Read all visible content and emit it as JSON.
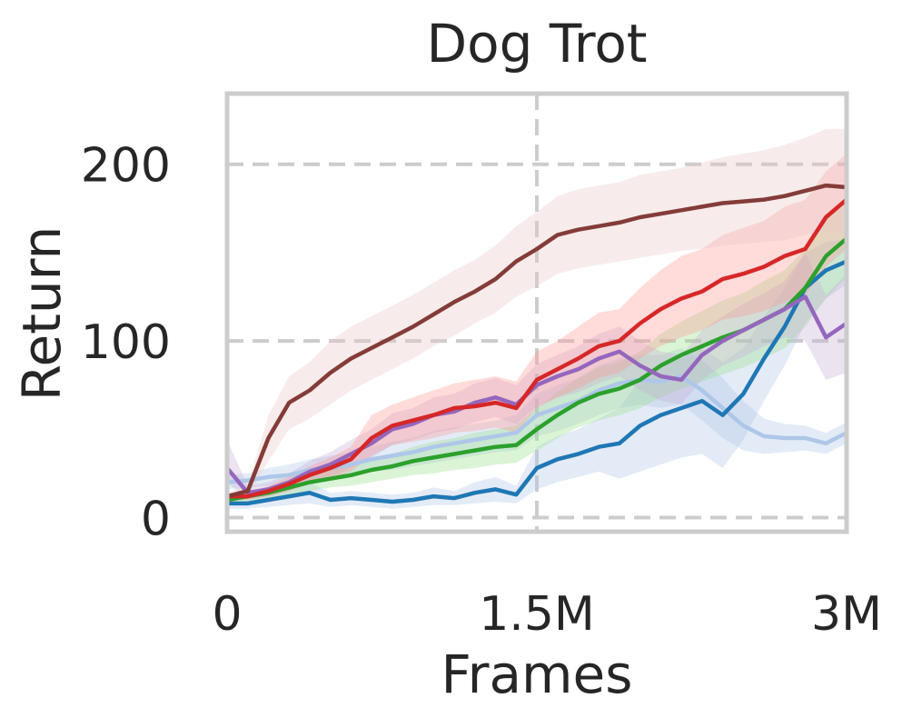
{
  "chart_data": {
    "type": "line",
    "title": "Dog Trot",
    "xlabel": "Frames",
    "ylabel": "Return",
    "xlim": [
      0,
      3000000
    ],
    "ylim": [
      -8,
      240
    ],
    "xticks": [
      0,
      1500000,
      3000000
    ],
    "xtick_labels": [
      "0",
      "1.5M",
      "3M"
    ],
    "yticks": [
      0,
      100,
      200
    ],
    "ytick_labels": [
      "0",
      "100",
      "200"
    ],
    "grid": true,
    "grid_style": "dashed",
    "legend": "none",
    "series": [
      {
        "color": "#aec7e8",
        "band_color": "#aec7e8",
        "x": [
          0,
          100000,
          200000,
          300000,
          400000,
          500000,
          600000,
          700000,
          800000,
          900000,
          1000000,
          1100000,
          1200000,
          1300000,
          1400000,
          1500000,
          1600000,
          1700000,
          1800000,
          1900000,
          2000000,
          2100000,
          2200000,
          2300000,
          2400000,
          2500000,
          2600000,
          2700000,
          2800000,
          2900000,
          3000000
        ],
        "y": [
          20,
          21,
          23,
          24,
          27,
          28,
          30,
          33,
          35,
          37,
          40,
          42,
          44,
          46,
          48,
          58,
          62,
          66,
          72,
          76,
          78,
          77,
          80,
          72,
          62,
          52,
          46,
          45,
          45,
          42,
          48
        ],
        "lower": [
          16,
          17,
          18,
          19,
          21,
          22,
          24,
          26,
          27,
          29,
          31,
          33,
          35,
          37,
          38,
          46,
          49,
          53,
          58,
          62,
          64,
          62,
          64,
          55,
          45,
          38,
          36,
          37,
          38,
          36,
          42
        ],
        "upper": [
          24,
          25,
          28,
          30,
          33,
          35,
          37,
          40,
          43,
          45,
          49,
          51,
          53,
          55,
          58,
          70,
          75,
          79,
          86,
          90,
          92,
          92,
          96,
          89,
          79,
          66,
          56,
          53,
          52,
          48,
          54
        ]
      },
      {
        "color": "#1f77b4",
        "band_color": "#aec7e8",
        "x": [
          0,
          100000,
          200000,
          300000,
          400000,
          500000,
          600000,
          700000,
          800000,
          900000,
          1000000,
          1100000,
          1200000,
          1300000,
          1400000,
          1500000,
          1600000,
          1700000,
          1800000,
          1900000,
          2000000,
          2100000,
          2200000,
          2300000,
          2400000,
          2500000,
          2600000,
          2700000,
          2800000,
          2900000,
          3000000
        ],
        "y": [
          8,
          8,
          10,
          12,
          14,
          10,
          11,
          10,
          9,
          10,
          12,
          11,
          14,
          16,
          13,
          28,
          33,
          36,
          40,
          42,
          52,
          58,
          62,
          66,
          58,
          70,
          90,
          108,
          130,
          140,
          145
        ],
        "lower": [
          5,
          5,
          6,
          7,
          8,
          6,
          7,
          6,
          5,
          6,
          7,
          7,
          8,
          9,
          8,
          16,
          20,
          23,
          26,
          22,
          26,
          30,
          34,
          36,
          28,
          44,
          66,
          86,
          110,
          124,
          132
        ],
        "upper": [
          11,
          11,
          14,
          17,
          20,
          14,
          15,
          14,
          13,
          14,
          17,
          15,
          20,
          23,
          18,
          40,
          46,
          50,
          56,
          62,
          78,
          86,
          90,
          96,
          88,
          96,
          114,
          130,
          150,
          156,
          158
        ]
      },
      {
        "color": "#2ca02c",
        "band_color": "#98df8a",
        "x": [
          0,
          100000,
          200000,
          300000,
          400000,
          500000,
          600000,
          700000,
          800000,
          900000,
          1000000,
          1100000,
          1200000,
          1300000,
          1400000,
          1500000,
          1600000,
          1700000,
          1800000,
          1900000,
          2000000,
          2100000,
          2200000,
          2300000,
          2400000,
          2500000,
          2600000,
          2700000,
          2800000,
          2900000,
          3000000
        ],
        "y": [
          10,
          12,
          14,
          17,
          20,
          22,
          24,
          27,
          29,
          32,
          34,
          36,
          38,
          40,
          41,
          50,
          58,
          65,
          70,
          73,
          78,
          86,
          92,
          97,
          102,
          106,
          112,
          118,
          130,
          148,
          158
        ],
        "lower": [
          8,
          9,
          11,
          13,
          15,
          17,
          18,
          20,
          22,
          24,
          25,
          27,
          28,
          30,
          31,
          38,
          45,
          51,
          55,
          58,
          62,
          68,
          73,
          77,
          81,
          85,
          90,
          96,
          108,
          124,
          136
        ],
        "upper": [
          12,
          15,
          17,
          21,
          25,
          27,
          30,
          34,
          36,
          40,
          43,
          45,
          48,
          50,
          52,
          62,
          71,
          79,
          85,
          88,
          94,
          104,
          111,
          117,
          123,
          127,
          134,
          140,
          152,
          170,
          180
        ]
      },
      {
        "color": "#9467bd",
        "band_color": "#c5b0d5",
        "x": [
          0,
          100000,
          200000,
          300000,
          400000,
          500000,
          600000,
          700000,
          800000,
          900000,
          1000000,
          1100000,
          1200000,
          1300000,
          1400000,
          1500000,
          1600000,
          1700000,
          1800000,
          1900000,
          2000000,
          2100000,
          2200000,
          2300000,
          2400000,
          2500000,
          2600000,
          2700000,
          2800000,
          2900000,
          3000000
        ],
        "y": [
          28,
          14,
          16,
          20,
          26,
          30,
          36,
          42,
          50,
          53,
          58,
          60,
          65,
          68,
          64,
          75,
          80,
          84,
          90,
          94,
          86,
          80,
          78,
          92,
          100,
          106,
          112,
          118,
          125,
          102,
          110
        ],
        "lower": [
          20,
          10,
          12,
          15,
          20,
          23,
          28,
          34,
          41,
          44,
          48,
          50,
          54,
          57,
          53,
          63,
          68,
          71,
          76,
          80,
          72,
          66,
          64,
          78,
          86,
          91,
          97,
          102,
          100,
          78,
          82
        ],
        "upper": [
          44,
          18,
          20,
          25,
          32,
          37,
          44,
          50,
          59,
          62,
          68,
          70,
          76,
          79,
          75,
          87,
          92,
          97,
          104,
          108,
          100,
          94,
          92,
          106,
          114,
          121,
          127,
          134,
          150,
          126,
          138
        ]
      },
      {
        "color": "#d62728",
        "band_color": "#ff9896",
        "x": [
          0,
          100000,
          200000,
          300000,
          400000,
          500000,
          600000,
          700000,
          800000,
          900000,
          1000000,
          1100000,
          1200000,
          1300000,
          1400000,
          1500000,
          1600000,
          1700000,
          1800000,
          1900000,
          2000000,
          2100000,
          2200000,
          2300000,
          2400000,
          2500000,
          2600000,
          2700000,
          2800000,
          2900000,
          3000000
        ],
        "y": [
          12,
          12,
          15,
          19,
          24,
          28,
          33,
          45,
          52,
          55,
          58,
          62,
          63,
          65,
          62,
          78,
          84,
          90,
          97,
          100,
          110,
          118,
          124,
          128,
          135,
          138,
          142,
          148,
          152,
          170,
          180
        ],
        "lower": [
          10,
          10,
          12,
          15,
          19,
          22,
          26,
          35,
          41,
          43,
          45,
          48,
          49,
          51,
          48,
          62,
          68,
          73,
          79,
          82,
          90,
          97,
          102,
          106,
          112,
          114,
          117,
          122,
          126,
          142,
          152
        ],
        "upper": [
          14,
          14,
          18,
          23,
          29,
          34,
          40,
          58,
          64,
          68,
          72,
          76,
          78,
          80,
          77,
          94,
          100,
          108,
          116,
          118,
          130,
          140,
          148,
          152,
          160,
          164,
          168,
          176,
          180,
          196,
          206
        ]
      },
      {
        "color": "#843c39",
        "band_color": "#e7c9c6",
        "x": [
          0,
          100000,
          200000,
          300000,
          400000,
          500000,
          600000,
          700000,
          800000,
          900000,
          1000000,
          1100000,
          1200000,
          1300000,
          1400000,
          1500000,
          1600000,
          1700000,
          1800000,
          1900000,
          2000000,
          2100000,
          2200000,
          2300000,
          2400000,
          2500000,
          2600000,
          2700000,
          2800000,
          2900000,
          3000000
        ],
        "y": [
          12,
          15,
          45,
          65,
          72,
          82,
          90,
          96,
          102,
          108,
          115,
          122,
          128,
          135,
          145,
          152,
          160,
          163,
          165,
          167,
          170,
          172,
          174,
          176,
          178,
          179,
          180,
          182,
          185,
          188,
          187
        ],
        "lower": [
          10,
          12,
          32,
          50,
          56,
          64,
          72,
          78,
          84,
          90,
          97,
          103,
          110,
          116,
          125,
          131,
          138,
          141,
          143,
          145,
          147,
          149,
          151,
          152,
          154,
          155,
          156,
          157,
          160,
          162,
          160
        ],
        "upper": [
          14,
          18,
          58,
          80,
          88,
          100,
          108,
          114,
          120,
          126,
          133,
          140,
          146,
          154,
          165,
          173,
          182,
          186,
          188,
          190,
          194,
          196,
          198,
          201,
          204,
          206,
          208,
          211,
          215,
          220,
          220
        ]
      }
    ]
  }
}
